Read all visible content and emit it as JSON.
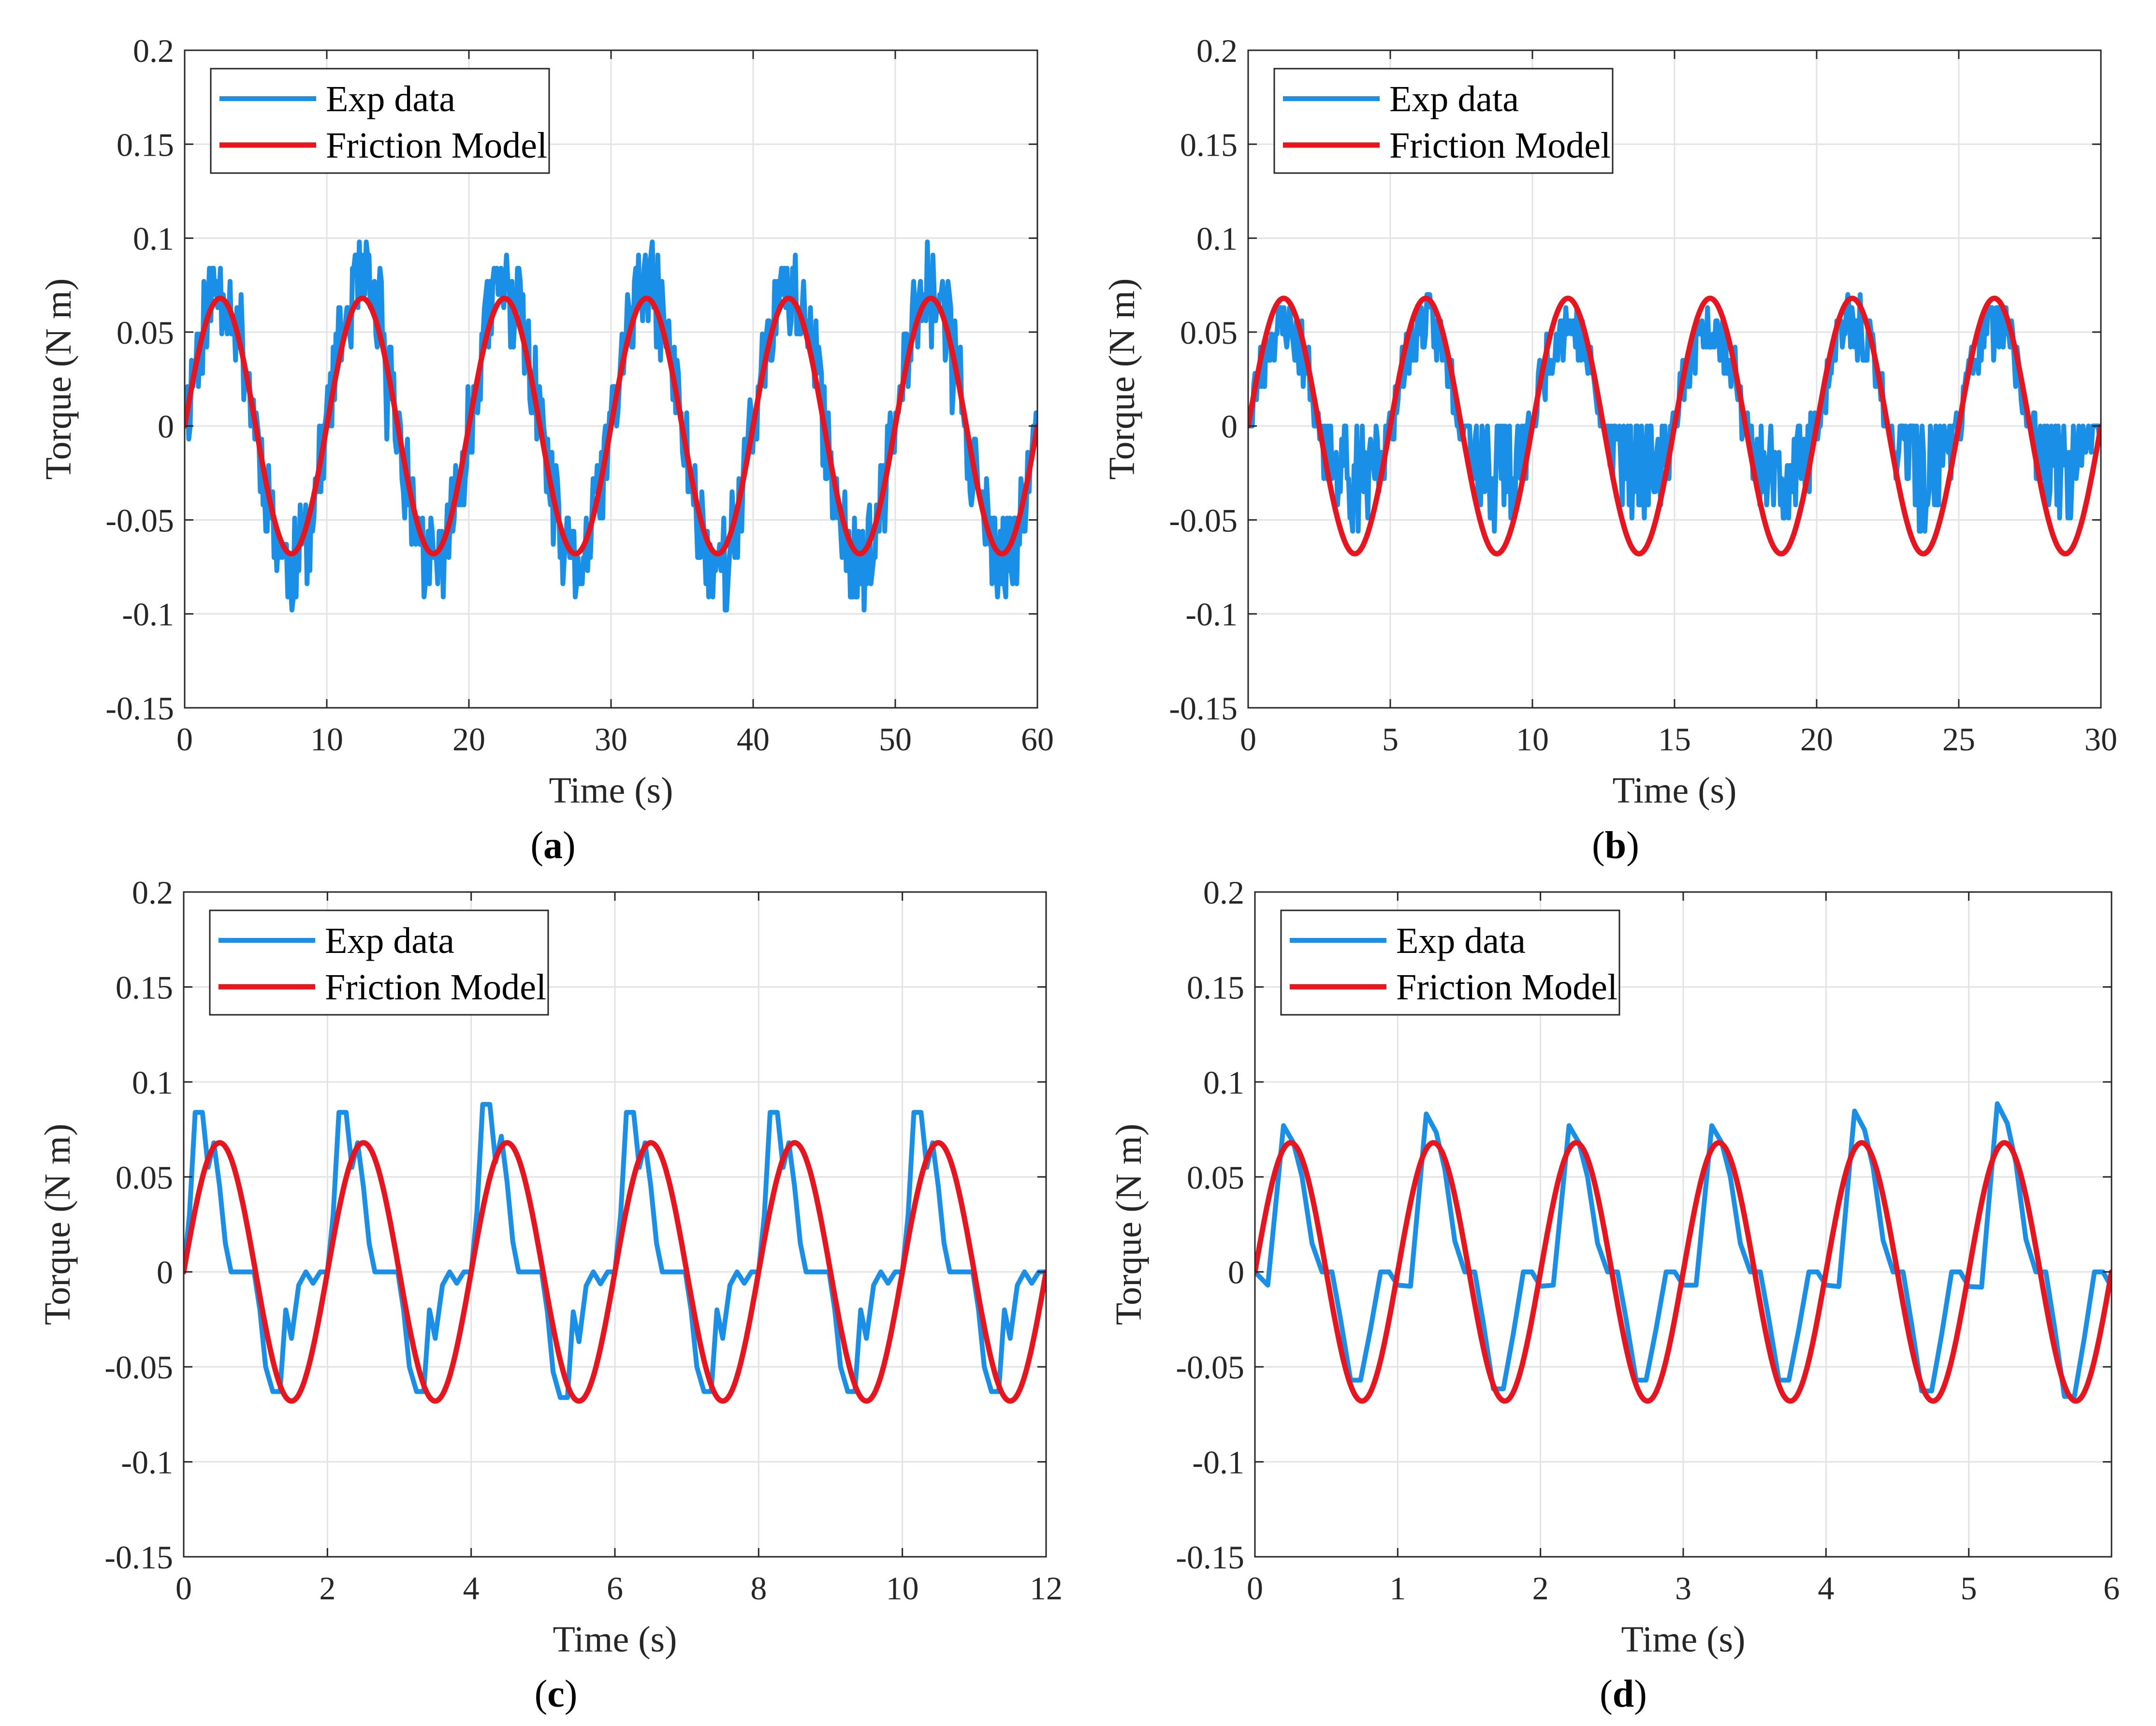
{
  "colors": {
    "exp": "#1a8fe8",
    "model": "#e8141e",
    "grid": "#e3e3e3",
    "axis": "#262626"
  },
  "chart_data": [
    {
      "panel": "a",
      "type": "line",
      "caption": {
        "open": "(",
        "letter": "a",
        "close": ")"
      },
      "xlabel": "Time (s)",
      "ylabel": "Torque (N m)",
      "xlim": [
        0,
        60
      ],
      "ylim": [
        -0.15,
        0.2
      ],
      "xticks": [
        0,
        10,
        20,
        30,
        40,
        50,
        60
      ],
      "xtick_labels": [
        "0",
        "10",
        "20",
        "30",
        "40",
        "50",
        "60"
      ],
      "yticks": [
        -0.15,
        -0.1,
        -0.05,
        0,
        0.05,
        0.1,
        0.15,
        0.2
      ],
      "ytick_labels": [
        "-0.15",
        "-0.1",
        "-0.05",
        "0",
        "0.05",
        "0.1",
        "0.15",
        "0.2"
      ],
      "grid": true,
      "legend_position": "top-left",
      "series": [
        {
          "name": "Exp data",
          "style": "noisy-quantized",
          "period": 10,
          "amplitude": 0.074,
          "seed": 11,
          "x_end": 60
        },
        {
          "name": "Friction Model",
          "style": "sine",
          "period": 10,
          "amplitude": 0.068,
          "x_end": 60
        }
      ]
    },
    {
      "panel": "b",
      "type": "line",
      "caption": {
        "open": "(",
        "letter": "b",
        "close": ")"
      },
      "xlabel": "Time (s)",
      "ylabel": "Torque (N m)",
      "xlim": [
        0,
        30
      ],
      "ylim": [
        -0.15,
        0.2
      ],
      "xticks": [
        0,
        5,
        10,
        15,
        20,
        25,
        30
      ],
      "xtick_labels": [
        "0",
        "5",
        "10",
        "15",
        "20",
        "25",
        "30"
      ],
      "yticks": [
        -0.15,
        -0.1,
        -0.05,
        0,
        0.05,
        0.1,
        0.15,
        0.2
      ],
      "ytick_labels": [
        "-0.15",
        "-0.1",
        "-0.05",
        "0",
        "0.05",
        "0.1",
        "0.15",
        "0.2"
      ],
      "grid": true,
      "legend_position": "top-left",
      "series": [
        {
          "name": "Exp data",
          "style": "noisy-deadband",
          "period": 5,
          "amplitude": 0.06,
          "seed": 23,
          "x_end": 30
        },
        {
          "name": "Friction Model",
          "style": "sine",
          "period": 5,
          "amplitude": 0.068,
          "x_end": 30
        }
      ]
    },
    {
      "panel": "c",
      "type": "line",
      "caption": {
        "open": "(",
        "letter": "c",
        "close": ")"
      },
      "xlabel": "Time (s)",
      "ylabel": "Torque (N m)",
      "xlim": [
        0,
        12
      ],
      "ylim": [
        -0.15,
        0.2
      ],
      "xticks": [
        0,
        2,
        4,
        6,
        8,
        10,
        12
      ],
      "xtick_labels": [
        "0",
        "2",
        "4",
        "6",
        "8",
        "10",
        "12"
      ],
      "yticks": [
        -0.15,
        -0.1,
        -0.05,
        0,
        0.05,
        0.1,
        0.15,
        0.2
      ],
      "ytick_labels": [
        "-0.15",
        "-0.1",
        "-0.05",
        "0",
        "0.05",
        "0.1",
        "0.15",
        "0.2"
      ],
      "grid": true,
      "legend_position": "top-left",
      "series": [
        {
          "name": "Exp data",
          "style": "sparse-cycle",
          "period": 2,
          "x_end": 12,
          "cycle_x": [
            0,
            0.08,
            0.16,
            0.26,
            0.34,
            0.42,
            0.5,
            0.58,
            0.66,
            0.8,
            0.98,
            1.06,
            1.14,
            1.24,
            1.34,
            1.42,
            1.5,
            1.6,
            1.7,
            1.8,
            1.9,
            2.0
          ],
          "cycle_y": [
            0,
            0.03,
            0.084,
            0.084,
            0.055,
            0.068,
            0.045,
            0.015,
            0,
            0,
            0,
            -0.02,
            -0.05,
            -0.063,
            -0.063,
            -0.02,
            -0.035,
            -0.007,
            0,
            -0.006,
            0,
            0
          ],
          "amp_scale": [
            1,
            1,
            1.05,
            1,
            1,
            1
          ]
        },
        {
          "name": "Friction Model",
          "style": "sine",
          "period": 2,
          "amplitude": 0.068,
          "x_end": 12
        }
      ]
    },
    {
      "panel": "d",
      "type": "line",
      "caption": {
        "open": "(",
        "letter": "d",
        "close": ")"
      },
      "xlabel": "Time (s)",
      "ylabel": "Torque (N m)",
      "xlim": [
        0,
        6
      ],
      "ylim": [
        -0.15,
        0.2
      ],
      "xticks": [
        0,
        1,
        2,
        3,
        4,
        5,
        6
      ],
      "xtick_labels": [
        "0",
        "1",
        "2",
        "3",
        "4",
        "5",
        "6"
      ],
      "yticks": [
        -0.15,
        -0.1,
        -0.05,
        0,
        0.05,
        0.1,
        0.15,
        0.2
      ],
      "ytick_labels": [
        "-0.15",
        "-0.1",
        "-0.05",
        "0",
        "0.05",
        "0.1",
        "0.15",
        "0.2"
      ],
      "grid": true,
      "legend_position": "top-left",
      "series": [
        {
          "name": "Exp data",
          "style": "sparse-cycle",
          "period": 1,
          "x_end": 6,
          "cycle_x": [
            0,
            0.09,
            0.2,
            0.27,
            0.33,
            0.4,
            0.47,
            0.54,
            0.6,
            0.67,
            0.74,
            0.81,
            0.88,
            0.94,
            1.0
          ],
          "cycle_y": [
            0,
            -0.007,
            0.077,
            0.068,
            0.05,
            0.015,
            0,
            0,
            -0.025,
            -0.057,
            -0.057,
            -0.03,
            0,
            0,
            -0.007
          ],
          "amp_scale": [
            1,
            1.08,
            1,
            1,
            1.1,
            1.15
          ]
        },
        {
          "name": "Friction Model",
          "style": "sine",
          "period": 1,
          "amplitude": 0.068,
          "x_end": 6
        }
      ]
    }
  ]
}
